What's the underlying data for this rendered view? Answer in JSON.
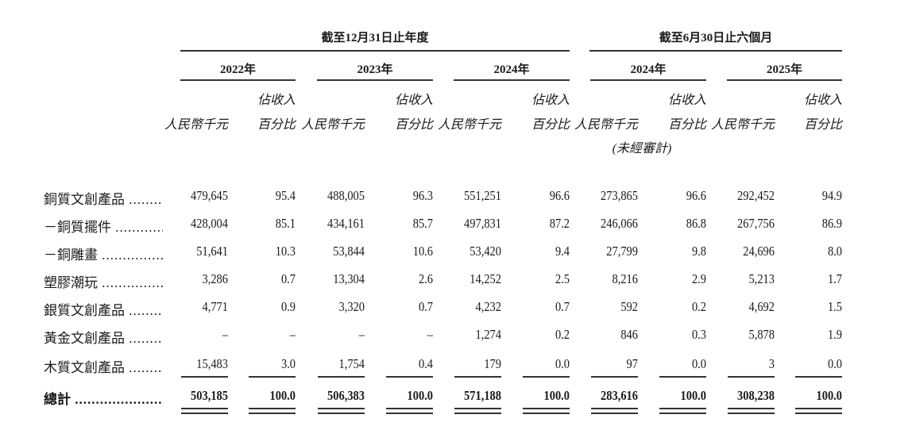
{
  "header": {
    "group_annual": "截至12月31日止年度",
    "group_interim": "截至6月30日止六個月",
    "years": [
      "2022年",
      "2023年",
      "2024年",
      "2024年",
      "2025年"
    ],
    "amount_label": "人民幣千元",
    "pct_label_line1": "佔收入",
    "pct_label_line2": "百分比",
    "unaudited": "(未經審計)"
  },
  "rows": [
    {
      "label": "銅質文創產品",
      "values": [
        "479,645",
        "95.4",
        "488,005",
        "96.3",
        "551,251",
        "96.6",
        "273,865",
        "96.6",
        "292,452",
        "94.9"
      ]
    },
    {
      "label": "－銅質擺件",
      "values": [
        "428,004",
        "85.1",
        "434,161",
        "85.7",
        "497,831",
        "87.2",
        "246,066",
        "86.8",
        "267,756",
        "86.9"
      ]
    },
    {
      "label": "－銅雕畫",
      "values": [
        "51,641",
        "10.3",
        "53,844",
        "10.6",
        "53,420",
        "9.4",
        "27,799",
        "9.8",
        "24,696",
        "8.0"
      ]
    },
    {
      "label": "塑膠潮玩",
      "values": [
        "3,286",
        "0.7",
        "13,304",
        "2.6",
        "14,252",
        "2.5",
        "8,216",
        "2.9",
        "5,213",
        "1.7"
      ]
    },
    {
      "label": "銀質文創產品",
      "values": [
        "4,771",
        "0.9",
        "3,320",
        "0.7",
        "4,232",
        "0.7",
        "592",
        "0.2",
        "4,692",
        "1.5"
      ]
    },
    {
      "label": "黃金文創產品",
      "values": [
        "–",
        "–",
        "–",
        "–",
        "1,274",
        "0.2",
        "846",
        "0.3",
        "5,878",
        "1.9"
      ]
    },
    {
      "label": "木質文創產品",
      "values": [
        "15,483",
        "3.0",
        "1,754",
        "0.4",
        "179",
        "0.0",
        "97",
        "0.0",
        "3",
        "0.0"
      ]
    }
  ],
  "total": {
    "label": "總計",
    "values": [
      "503,185",
      "100.0",
      "506,383",
      "100.0",
      "571,188",
      "100.0",
      "283,616",
      "100.0",
      "308,238",
      "100.0"
    ]
  }
}
